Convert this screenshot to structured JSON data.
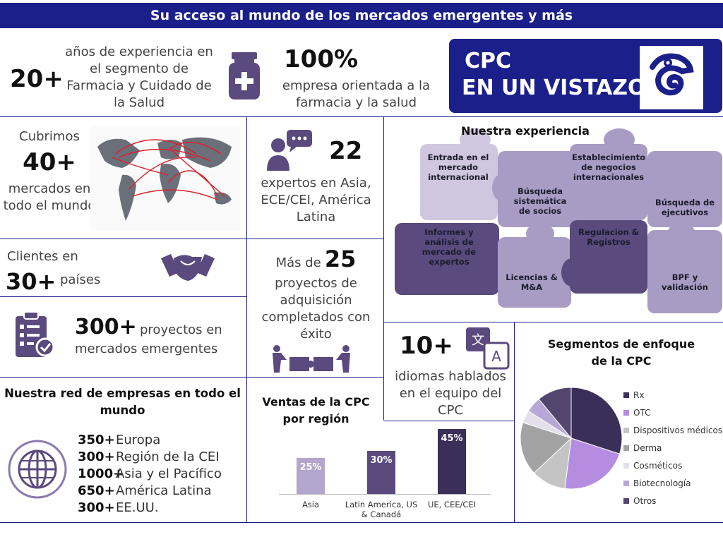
{
  "header": {
    "title": "Su acceso al mundo de los mercados emergentes y más"
  },
  "experience": {
    "number": "20+",
    "text": "años de experiencia en el segmento de Farmacia y Cuidado de la Salud"
  },
  "focus": {
    "number": "100%",
    "text": "empresa orientada a la farmacia y la salud"
  },
  "logo": {
    "line1": "CPC",
    "line2": "EN UN VISTAZO"
  },
  "markets": {
    "pre": "Cubrimos",
    "number": "40+",
    "text": "mercados en todo el mundo"
  },
  "experts": {
    "number": "22",
    "text": "expertos en Asia, ECE/CEI, América Latina"
  },
  "clients": {
    "pre": "Clientes en",
    "number": "30+",
    "text": "países"
  },
  "projects": {
    "number": "300+",
    "text1": "proyectos en",
    "text2": "mercados emergentes"
  },
  "acquisitions": {
    "pre": "Más de",
    "number": "25",
    "text": "proyectos de adquisición completados con éxito"
  },
  "puzzle": {
    "title": "Nuestra experiencia",
    "pieces": [
      "Entrada en el mercado internacional",
      "Búsqueda sistemática de socios",
      "Establecimiento de negocios internacionales",
      "Búsqueda de ejecutivos",
      "Informes y análisis de mercado de expertos",
      "Licencias & M&A",
      "Regulacion & Registros",
      "BPF y validación"
    ]
  },
  "languages": {
    "number": "10+",
    "text": "idiomas hablados en el equipo del CPC"
  },
  "network": {
    "title": "Nuestra red de empresas en todo el mundo",
    "rows": [
      {
        "n": "350+",
        "region": "Europa"
      },
      {
        "n": "300+",
        "region": "Región de la CEI"
      },
      {
        "n": "1000+",
        "region": "Asia y el Pacífico"
      },
      {
        "n": "650+",
        "region": "América Latina"
      },
      {
        "n": "300+",
        "region": "EE.UU."
      }
    ]
  },
  "colors": {
    "dark": "#3a2f58",
    "mid": "#5a4a7e",
    "light": "#a99cc4",
    "pale": "#cfc7e0",
    "brand": "#1b1f8a"
  },
  "chart_data": [
    {
      "type": "bar",
      "title": "Ventas de la CPC por región",
      "categories": [
        "Asia",
        "Latin America, US & Canadá",
        "UE, CEE/CEI"
      ],
      "values": [
        25,
        30,
        45
      ],
      "labels": [
        "25%",
        "30%",
        "45%"
      ],
      "colors": [
        "#b2a6cc",
        "#5a4a7e",
        "#3a2f58"
      ]
    },
    {
      "type": "pie",
      "title": "Segmentos de enfoque de la CPC",
      "categories": [
        "Rx",
        "OTC",
        "Dispositivos médicos",
        "Derma",
        "Cosméticos",
        "Biotecnología",
        "Otros"
      ],
      "values": [
        30,
        22,
        11,
        17,
        4,
        5,
        11
      ],
      "colors": [
        "#3a2f58",
        "#b48de0",
        "#c4c4c4",
        "#a3a3a3",
        "#e3e0ea",
        "#b7a8d6",
        "#54456f"
      ]
    }
  ]
}
